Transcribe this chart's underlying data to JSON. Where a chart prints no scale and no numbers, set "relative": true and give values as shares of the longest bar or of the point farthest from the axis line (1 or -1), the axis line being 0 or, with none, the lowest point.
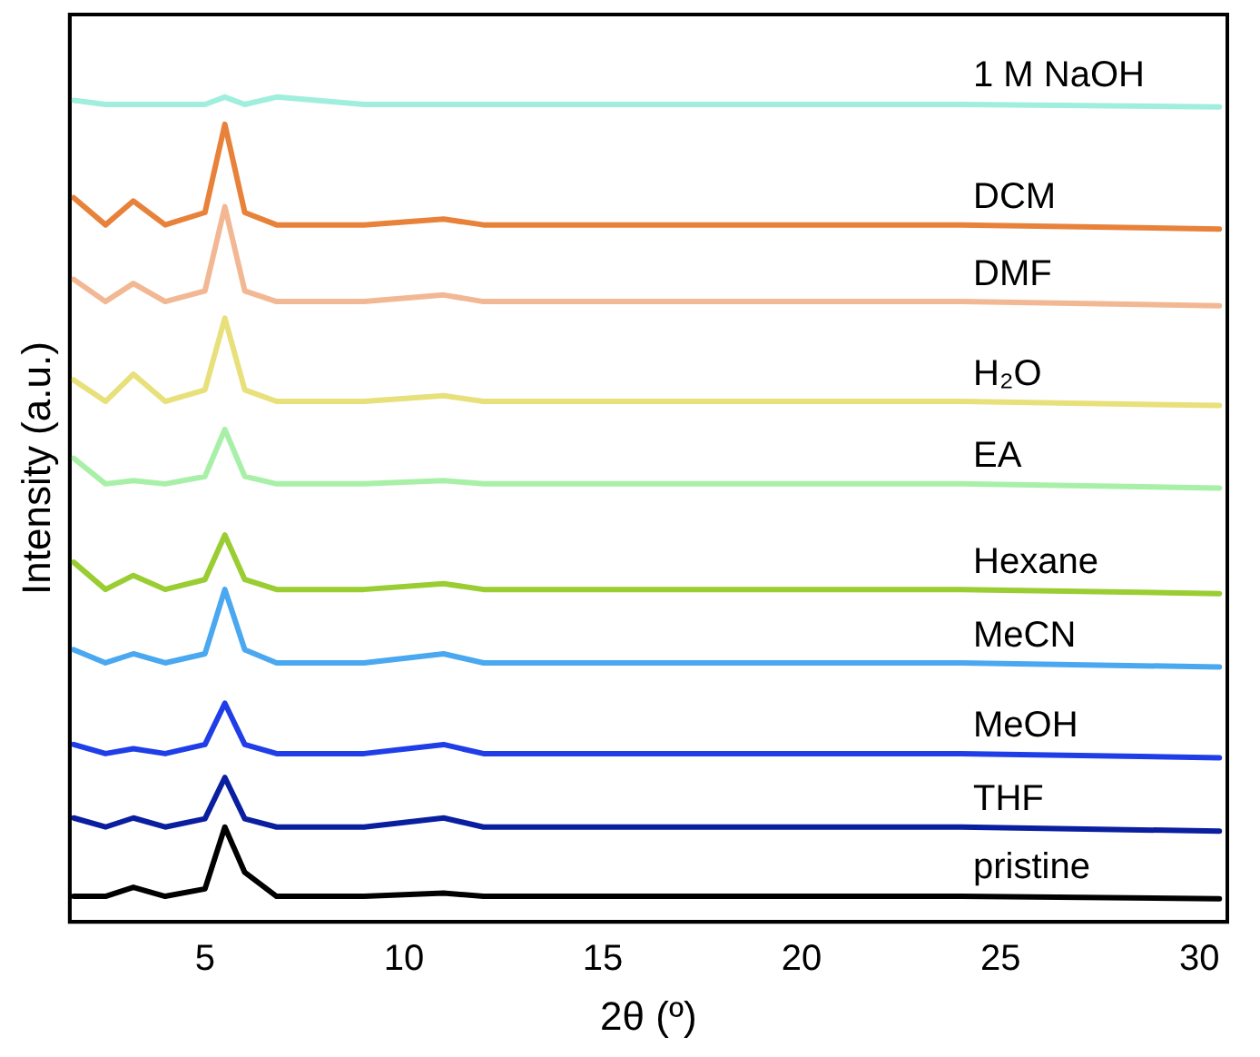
{
  "chart_data": {
    "type": "line",
    "xlabel": "2θ (º)",
    "ylabel": "Intensity (a.u.)",
    "relative": true,
    "xlim": [
      1.6,
      30.7
    ],
    "xticks": [
      5,
      10,
      15,
      20,
      25,
      30
    ],
    "grid": false,
    "legend": false,
    "marker": "none",
    "line_style": "solid",
    "x": [
      1.7,
      2.5,
      3.2,
      4.0,
      5.0,
      5.5,
      6.0,
      6.8,
      9.0,
      11.0,
      12.0,
      18.0,
      24.0,
      30.5
    ],
    "series": [
      {
        "name": "pristine",
        "color": "#000000",
        "values": [
          0.031,
          0.031,
          0.042,
          0.031,
          0.04,
          0.115,
          0.06,
          0.031,
          0.031,
          0.035,
          0.031,
          0.031,
          0.031,
          0.028
        ]
      },
      {
        "name": "THF",
        "color": "#0a1fa0",
        "values": [
          0.126,
          0.115,
          0.126,
          0.115,
          0.125,
          0.175,
          0.125,
          0.115,
          0.115,
          0.126,
          0.115,
          0.115,
          0.115,
          0.11
        ]
      },
      {
        "name": "MeOH",
        "color": "#1f3ee8",
        "values": [
          0.215,
          0.204,
          0.21,
          0.204,
          0.215,
          0.265,
          0.215,
          0.204,
          0.204,
          0.215,
          0.204,
          0.204,
          0.204,
          0.199
        ]
      },
      {
        "name": "MeCN",
        "color": "#4aa8f0",
        "values": [
          0.33,
          0.314,
          0.325,
          0.314,
          0.325,
          0.403,
          0.33,
          0.314,
          0.314,
          0.325,
          0.314,
          0.314,
          0.314,
          0.309
        ]
      },
      {
        "name": "Hexane",
        "color": "#9acd32",
        "values": [
          0.436,
          0.403,
          0.42,
          0.403,
          0.415,
          0.469,
          0.415,
          0.403,
          0.403,
          0.41,
          0.403,
          0.403,
          0.403,
          0.398
        ]
      },
      {
        "name": "EA",
        "color": "#a8f0a8",
        "values": [
          0.562,
          0.531,
          0.535,
          0.531,
          0.54,
          0.597,
          0.54,
          0.531,
          0.531,
          0.535,
          0.531,
          0.531,
          0.531,
          0.526
        ]
      },
      {
        "name": "H₂O",
        "color": "#e8e07a",
        "values": [
          0.657,
          0.631,
          0.664,
          0.631,
          0.645,
          0.732,
          0.645,
          0.631,
          0.631,
          0.638,
          0.631,
          0.631,
          0.631,
          0.626
        ]
      },
      {
        "name": "DMF",
        "color": "#f2b894",
        "values": [
          0.779,
          0.752,
          0.774,
          0.752,
          0.765,
          0.867,
          0.765,
          0.752,
          0.752,
          0.76,
          0.752,
          0.752,
          0.752,
          0.747
        ]
      },
      {
        "name": "DCM",
        "color": "#e8823a",
        "values": [
          0.878,
          0.845,
          0.874,
          0.845,
          0.86,
          0.967,
          0.86,
          0.845,
          0.845,
          0.852,
          0.845,
          0.845,
          0.845,
          0.84
        ]
      },
      {
        "name": "1 M NaOH",
        "color": "#a0eedd",
        "values": [
          0.996,
          0.991,
          0.991,
          0.991,
          0.991,
          1.0,
          0.991,
          1.0,
          0.991,
          0.991,
          0.991,
          0.991,
          0.991,
          0.988
        ]
      }
    ]
  }
}
